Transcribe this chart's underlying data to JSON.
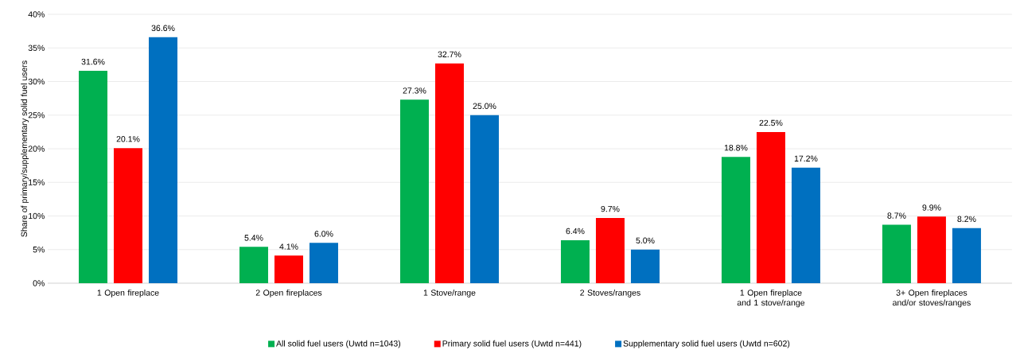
{
  "chart_data": {
    "type": "bar",
    "ylabel": "Share of primary/supplementary solid fuel users",
    "categories": [
      "1 Open fireplace",
      "2 Open fireplaces",
      "1 Stove/range",
      "2 Stoves/ranges",
      "1 Open fireplace and 1 stove/range",
      "3+ Open fireplaces and/or stoves/ranges"
    ],
    "series": [
      {
        "name": "All solid fuel users (Uwtd n=1043)",
        "color": "#00b050",
        "values": [
          31.6,
          5.4,
          27.3,
          6.4,
          18.8,
          8.7
        ],
        "value_labels": [
          "31.6%",
          "5.4%",
          "27.3%",
          "6.4%",
          "18.8%",
          "8.7%"
        ]
      },
      {
        "name": "Primary solid fuel users (Uwtd n=441)",
        "color": "#ff0000",
        "values": [
          20.1,
          4.1,
          32.7,
          9.7,
          22.5,
          9.9
        ],
        "value_labels": [
          "20.1%",
          "4.1%",
          "32.7%",
          "9.7%",
          "22.5%",
          "9.9%"
        ]
      },
      {
        "name": "Supplementary solid fuel users (Uwtd n=602)",
        "color": "#0070c0",
        "values": [
          36.6,
          6.0,
          25.0,
          5.0,
          17.2,
          8.2
        ],
        "value_labels": [
          "36.6%",
          "6.0%",
          "25.0%",
          "5.0%",
          "17.2%",
          "8.2%"
        ]
      }
    ],
    "ylim": [
      0,
      40
    ],
    "yticks": [
      {
        "value": 0,
        "label": "0%"
      },
      {
        "value": 5,
        "label": "5%"
      },
      {
        "value": 10,
        "label": "10%"
      },
      {
        "value": 15,
        "label": "15%"
      },
      {
        "value": 20,
        "label": "20%"
      },
      {
        "value": 25,
        "label": "25%"
      },
      {
        "value": 30,
        "label": "30%"
      },
      {
        "value": 35,
        "label": "35%"
      },
      {
        "value": 40,
        "label": "40%"
      }
    ],
    "grid": "y",
    "legend": "bottom"
  }
}
